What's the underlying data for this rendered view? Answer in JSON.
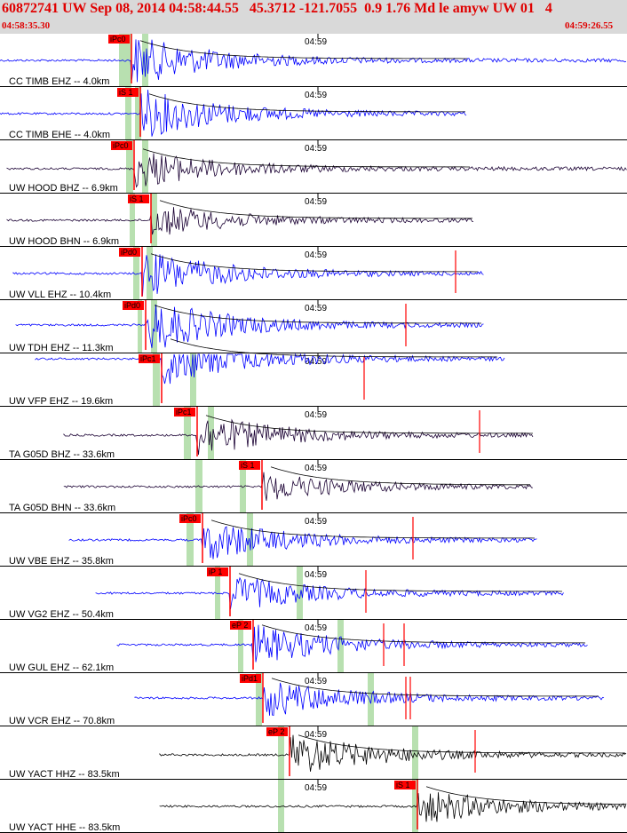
{
  "header": {
    "title": "60872741 UW Sep 08, 2014 04:58:44.55   45.3712 -121.7055  0.9 1.76 Md le amyw UW 01   4",
    "start_time": "04:58:35.30",
    "end_time": "04:59:26.55"
  },
  "tick_label": "04:59",
  "colors": {
    "title": "#e00000",
    "header_bg": "#d9d9d9",
    "pick": "#ff0000",
    "window": "#b8e0b0",
    "blue": "#0000ff",
    "dark": "#1a0033",
    "black": "#000000"
  },
  "panels": [
    {
      "label": "CC TIMB EHZ -- 4.0km",
      "pick": "iPc0",
      "color": "blue"
    },
    {
      "label": "CC TIMB EHE -- 4.0km",
      "pick": "iS 1",
      "color": "blue"
    },
    {
      "label": "UW HOOD BHZ -- 6.9km",
      "pick": "iPc0",
      "color": "dark"
    },
    {
      "label": "UW HOOD BHN -- 6.9km",
      "pick": "iS 1",
      "color": "dark"
    },
    {
      "label": "UW VLL EHZ -- 10.4km",
      "pick": "iPd0",
      "color": "blue"
    },
    {
      "label": "UW TDH EHZ -- 11.3km",
      "pick": "iPd0",
      "color": "blue"
    },
    {
      "label": "UW VFP EHZ -- 19.6km",
      "pick": "iPc1",
      "color": "blue"
    },
    {
      "label": "TA G05D BHZ -- 33.6km",
      "pick": "iPc1",
      "color": "dark"
    },
    {
      "label": "TA G05D BHN -- 33.6km",
      "pick": "iS 1",
      "color": "dark"
    },
    {
      "label": "UW VBE EHZ -- 35.8km",
      "pick": "iPc0",
      "color": "blue"
    },
    {
      "label": "UW VG2 EHZ -- 50.4km",
      "pick": "iP 1",
      "color": "blue"
    },
    {
      "label": "UW GUL EHZ -- 62.1km",
      "pick": "eP 2",
      "color": "blue"
    },
    {
      "label": "UW VCR EHZ -- 70.8km",
      "pick": "iPd1",
      "color": "blue"
    },
    {
      "label": "UW YACT HHZ -- 83.5km",
      "pick": "eP 2",
      "color": "black"
    },
    {
      "label": "UW YACT HHE -- 83.5km",
      "pick": "iS 1",
      "color": "black"
    }
  ]
}
